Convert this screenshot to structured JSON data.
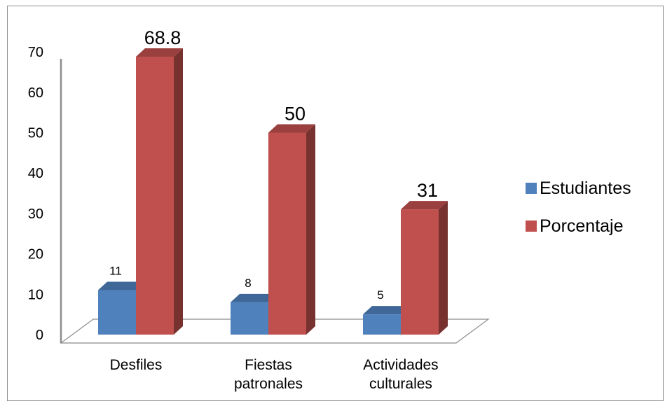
{
  "chart_data": {
    "type": "bar",
    "categories": [
      [
        "Desfiles"
      ],
      [
        "Fiestas",
        "patronales"
      ],
      [
        "Actividades",
        "culturales"
      ]
    ],
    "series": [
      {
        "name": "Estudiantes",
        "values": [
          11,
          8,
          5
        ],
        "labels": [
          "11",
          "8",
          "5"
        ],
        "color": "#4f81bd"
      },
      {
        "name": "Porcentaje",
        "values": [
          68.8,
          50,
          31
        ],
        "labels": [
          "68.8",
          "50",
          "31"
        ],
        "color": "#c0504d"
      }
    ],
    "yticks": [
      "0",
      "10",
      "20",
      "30",
      "40",
      "50",
      "60",
      "70"
    ],
    "ylim": [
      0,
      70
    ],
    "legend_position": "right",
    "style": "3d-column"
  }
}
